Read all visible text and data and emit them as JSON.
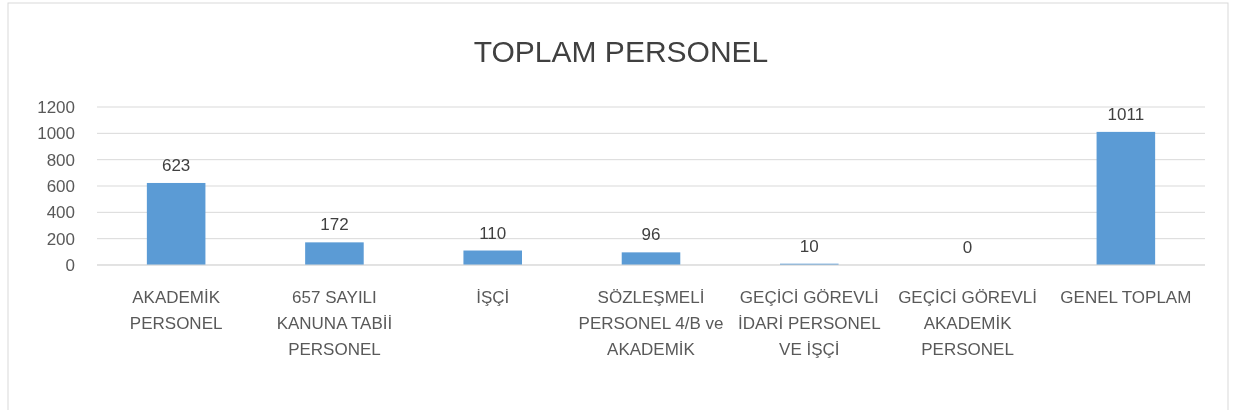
{
  "chart_data": {
    "type": "bar",
    "title": "TOPLAM PERSONEL",
    "categories": [
      "AKADEMİK PERSONEL",
      "657 SAYILI KANUNA TABİİ PERSONEL",
      "İŞÇİ",
      "SÖZLEŞMELİ PERSONEL 4/B ve AKADEMİK",
      "GEÇİCİ GÖREVLİ İDARİ PERSONEL VE İŞÇİ",
      "GEÇİCİ GÖREVLİ AKADEMİK PERSONEL",
      "GENEL TOPLAM"
    ],
    "values": [
      623,
      172,
      110,
      96,
      10,
      0,
      1011
    ],
    "color": "#5b9bd5",
    "ylim": [
      0,
      1200
    ],
    "yticks": [
      0,
      200,
      400,
      600,
      800,
      1000,
      1200
    ],
    "grid": "y",
    "data_labels": true
  }
}
